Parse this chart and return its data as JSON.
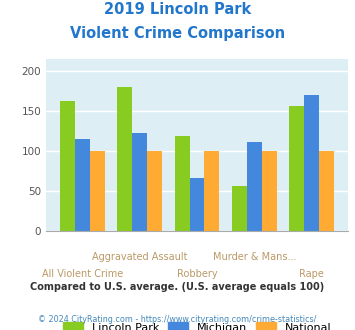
{
  "title_line1": "2019 Lincoln Park",
  "title_line2": "Violent Crime Comparison",
  "title_color": "#2277cc",
  "categories": [
    "All Violent Crime",
    "Aggravated Assault",
    "Robbery",
    "Murder & Mans...",
    "Rape"
  ],
  "lincoln_park": [
    163,
    181,
    119,
    57,
    156
  ],
  "michigan": [
    115,
    123,
    66,
    112,
    170
  ],
  "national": [
    100,
    100,
    100,
    100,
    100
  ],
  "lincoln_park_color": "#88cc22",
  "michigan_color": "#4488dd",
  "national_color": "#ffaa33",
  "yticks": [
    0,
    50,
    100,
    150,
    200
  ],
  "bg_color": "#deeef5",
  "legend_labels": [
    "Lincoln Park",
    "Michigan",
    "National"
  ],
  "footnote1": "Compared to U.S. average. (U.S. average equals 100)",
  "footnote2": "© 2024 CityRating.com - https://www.cityrating.com/crime-statistics/",
  "footnote1_color": "#333333",
  "footnote2_color": "#4488bb"
}
